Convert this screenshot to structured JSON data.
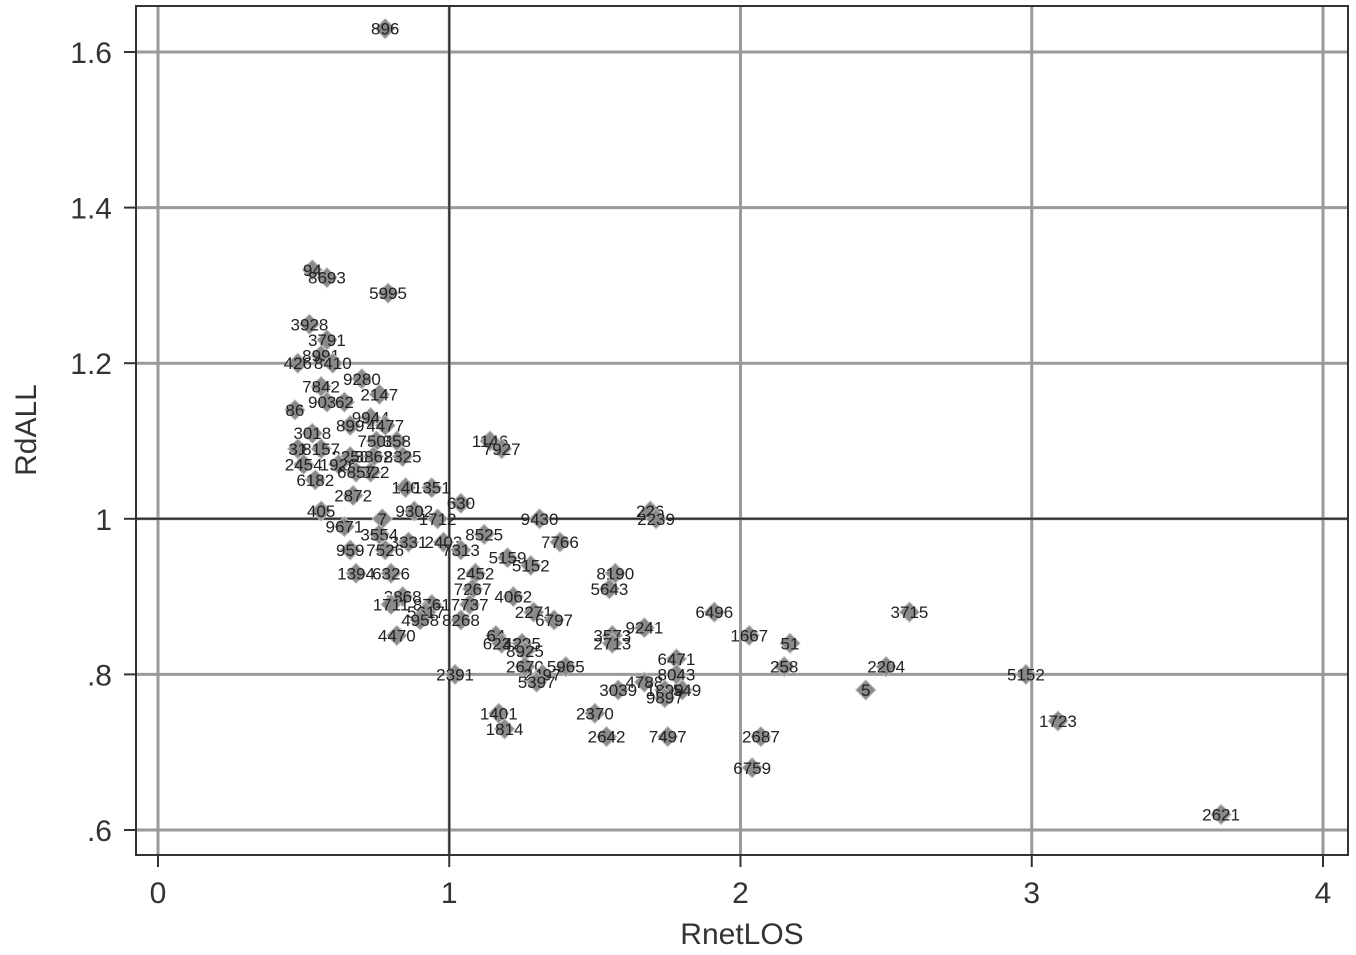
{
  "chart_data": {
    "type": "scatter",
    "xlabel": "RnetLOS",
    "ylabel": "RdALL",
    "xlim": [
      0,
      4
    ],
    "ylim": [
      0.6,
      1.65
    ],
    "xticks": [
      0,
      1,
      2,
      3,
      4
    ],
    "xtick_labels": [
      "0",
      "1",
      "2",
      "3",
      "4"
    ],
    "yticks": [
      0.6,
      0.8,
      1.0,
      1.2,
      1.4,
      1.6
    ],
    "ytick_labels": [
      ".6",
      ".8",
      "1",
      "1.2",
      "1.4",
      "1.6"
    ],
    "grid": true,
    "reference_lines": {
      "x": 1,
      "y": 1
    },
    "marker_color": "#8a8a8a",
    "points": [
      {
        "x": 0.78,
        "y": 1.63,
        "label": "896"
      },
      {
        "x": 0.53,
        "y": 1.32,
        "label": "94"
      },
      {
        "x": 0.58,
        "y": 1.31,
        "label": "8693"
      },
      {
        "x": 0.79,
        "y": 1.29,
        "label": "5995"
      },
      {
        "x": 0.52,
        "y": 1.25,
        "label": "3928"
      },
      {
        "x": 0.58,
        "y": 1.23,
        "label": "3791"
      },
      {
        "x": 0.48,
        "y": 1.2,
        "label": "426"
      },
      {
        "x": 0.56,
        "y": 1.21,
        "label": "8991"
      },
      {
        "x": 0.6,
        "y": 1.2,
        "label": "8410"
      },
      {
        "x": 0.7,
        "y": 1.18,
        "label": "9280"
      },
      {
        "x": 0.56,
        "y": 1.17,
        "label": "7842"
      },
      {
        "x": 0.76,
        "y": 1.16,
        "label": "2147"
      },
      {
        "x": 0.58,
        "y": 1.15,
        "label": "9031"
      },
      {
        "x": 0.64,
        "y": 1.15,
        "label": "62"
      },
      {
        "x": 0.47,
        "y": 1.14,
        "label": "86"
      },
      {
        "x": 0.73,
        "y": 1.13,
        "label": "9944"
      },
      {
        "x": 0.78,
        "y": 1.12,
        "label": "4477"
      },
      {
        "x": 0.53,
        "y": 1.11,
        "label": "3018"
      },
      {
        "x": 0.66,
        "y": 1.12,
        "label": "899"
      },
      {
        "x": 0.75,
        "y": 1.1,
        "label": "7508"
      },
      {
        "x": 0.82,
        "y": 1.1,
        "label": "358"
      },
      {
        "x": 1.14,
        "y": 1.1,
        "label": "1146"
      },
      {
        "x": 1.18,
        "y": 1.09,
        "label": "7927"
      },
      {
        "x": 0.48,
        "y": 1.09,
        "label": "31"
      },
      {
        "x": 0.56,
        "y": 1.09,
        "label": "8157"
      },
      {
        "x": 0.66,
        "y": 1.08,
        "label": "2258"
      },
      {
        "x": 0.74,
        "y": 1.08,
        "label": "3862"
      },
      {
        "x": 0.84,
        "y": 1.08,
        "label": "8325"
      },
      {
        "x": 0.5,
        "y": 1.07,
        "label": "2454"
      },
      {
        "x": 0.62,
        "y": 1.07,
        "label": "1926"
      },
      {
        "x": 0.73,
        "y": 1.06,
        "label": "8822"
      },
      {
        "x": 0.54,
        "y": 1.05,
        "label": "6182"
      },
      {
        "x": 0.68,
        "y": 1.06,
        "label": "6857"
      },
      {
        "x": 0.67,
        "y": 1.03,
        "label": "2872"
      },
      {
        "x": 0.85,
        "y": 1.04,
        "label": "140"
      },
      {
        "x": 0.94,
        "y": 1.04,
        "label": "1351"
      },
      {
        "x": 1.04,
        "y": 1.02,
        "label": "630"
      },
      {
        "x": 0.56,
        "y": 1.01,
        "label": "405"
      },
      {
        "x": 0.77,
        "y": 1.0,
        "label": "7"
      },
      {
        "x": 0.88,
        "y": 1.01,
        "label": "9302"
      },
      {
        "x": 0.96,
        "y": 1.0,
        "label": "1712"
      },
      {
        "x": 1.31,
        "y": 1.0,
        "label": "9430"
      },
      {
        "x": 1.69,
        "y": 1.01,
        "label": "226"
      },
      {
        "x": 1.71,
        "y": 1.0,
        "label": "2239"
      },
      {
        "x": 0.64,
        "y": 0.99,
        "label": "9671"
      },
      {
        "x": 0.76,
        "y": 0.98,
        "label": "3554"
      },
      {
        "x": 0.86,
        "y": 0.97,
        "label": "3331"
      },
      {
        "x": 0.98,
        "y": 0.97,
        "label": "2403"
      },
      {
        "x": 1.12,
        "y": 0.98,
        "label": "8525"
      },
      {
        "x": 1.38,
        "y": 0.97,
        "label": "7766"
      },
      {
        "x": 1.04,
        "y": 0.96,
        "label": "7313"
      },
      {
        "x": 0.66,
        "y": 0.96,
        "label": "959"
      },
      {
        "x": 0.78,
        "y": 0.96,
        "label": "7526"
      },
      {
        "x": 1.2,
        "y": 0.95,
        "label": "5159"
      },
      {
        "x": 1.28,
        "y": 0.94,
        "label": "5152"
      },
      {
        "x": 0.68,
        "y": 0.93,
        "label": "1394"
      },
      {
        "x": 0.8,
        "y": 0.93,
        "label": "6326"
      },
      {
        "x": 1.09,
        "y": 0.93,
        "label": "2452"
      },
      {
        "x": 1.57,
        "y": 0.93,
        "label": "8190"
      },
      {
        "x": 1.55,
        "y": 0.91,
        "label": "5643"
      },
      {
        "x": 1.08,
        "y": 0.91,
        "label": "7267"
      },
      {
        "x": 0.84,
        "y": 0.9,
        "label": "3868"
      },
      {
        "x": 1.22,
        "y": 0.9,
        "label": "4062"
      },
      {
        "x": 0.8,
        "y": 0.89,
        "label": "1711"
      },
      {
        "x": 0.94,
        "y": 0.89,
        "label": "8761"
      },
      {
        "x": 1.07,
        "y": 0.89,
        "label": "7737"
      },
      {
        "x": 1.29,
        "y": 0.88,
        "label": "2271"
      },
      {
        "x": 0.92,
        "y": 0.88,
        "label": "5617"
      },
      {
        "x": 1.91,
        "y": 0.88,
        "label": "6496"
      },
      {
        "x": 2.58,
        "y": 0.88,
        "label": "3715"
      },
      {
        "x": 0.9,
        "y": 0.87,
        "label": "4958"
      },
      {
        "x": 1.04,
        "y": 0.87,
        "label": "8268"
      },
      {
        "x": 1.36,
        "y": 0.87,
        "label": "6797"
      },
      {
        "x": 1.67,
        "y": 0.86,
        "label": "9241"
      },
      {
        "x": 0.82,
        "y": 0.85,
        "label": "4470"
      },
      {
        "x": 1.16,
        "y": 0.85,
        "label": "64"
      },
      {
        "x": 1.56,
        "y": 0.85,
        "label": "3573"
      },
      {
        "x": 2.03,
        "y": 0.85,
        "label": "1667"
      },
      {
        "x": 2.17,
        "y": 0.84,
        "label": "51"
      },
      {
        "x": 1.18,
        "y": 0.84,
        "label": "6231"
      },
      {
        "x": 1.25,
        "y": 0.84,
        "label": "4285"
      },
      {
        "x": 1.56,
        "y": 0.84,
        "label": "2713"
      },
      {
        "x": 1.26,
        "y": 0.83,
        "label": "8925"
      },
      {
        "x": 1.78,
        "y": 0.82,
        "label": "6471"
      },
      {
        "x": 1.26,
        "y": 0.81,
        "label": "2670"
      },
      {
        "x": 1.4,
        "y": 0.81,
        "label": "5965"
      },
      {
        "x": 2.15,
        "y": 0.81,
        "label": "258"
      },
      {
        "x": 2.5,
        "y": 0.81,
        "label": "2204"
      },
      {
        "x": 1.02,
        "y": 0.8,
        "label": "2391"
      },
      {
        "x": 1.32,
        "y": 0.8,
        "label": "2497"
      },
      {
        "x": 1.78,
        "y": 0.8,
        "label": "8043"
      },
      {
        "x": 2.98,
        "y": 0.8,
        "label": "5152"
      },
      {
        "x": 1.3,
        "y": 0.79,
        "label": "5397"
      },
      {
        "x": 1.67,
        "y": 0.79,
        "label": "4788"
      },
      {
        "x": 1.8,
        "y": 0.78,
        "label": "1549"
      },
      {
        "x": 1.58,
        "y": 0.78,
        "label": "3039"
      },
      {
        "x": 1.74,
        "y": 0.78,
        "label": "1899"
      },
      {
        "x": 2.43,
        "y": 0.78,
        "label": "5"
      },
      {
        "x": 1.74,
        "y": 0.77,
        "label": "9897"
      },
      {
        "x": 1.17,
        "y": 0.75,
        "label": "1401"
      },
      {
        "x": 1.5,
        "y": 0.75,
        "label": "2370"
      },
      {
        "x": 3.09,
        "y": 0.74,
        "label": "1723"
      },
      {
        "x": 1.19,
        "y": 0.73,
        "label": "1814"
      },
      {
        "x": 1.54,
        "y": 0.72,
        "label": "2642"
      },
      {
        "x": 1.75,
        "y": 0.72,
        "label": "7497"
      },
      {
        "x": 2.07,
        "y": 0.72,
        "label": "2687"
      },
      {
        "x": 2.04,
        "y": 0.68,
        "label": "6759"
      },
      {
        "x": 3.65,
        "y": 0.62,
        "label": "2621"
      }
    ]
  }
}
